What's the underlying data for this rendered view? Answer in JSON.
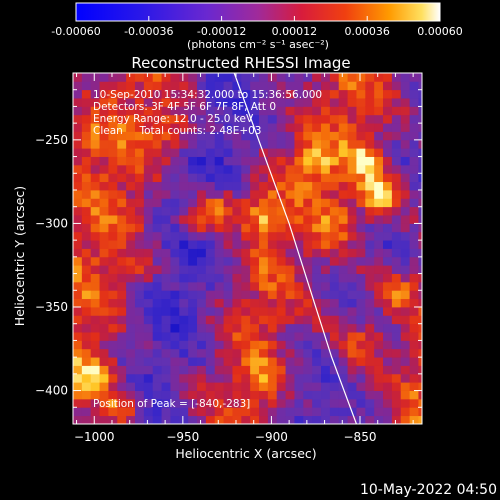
{
  "colorbar": {
    "ticks": [
      "-0.00060",
      "-0.00036",
      "-0.00012",
      "0.00012",
      "0.00036",
      "0.00060"
    ],
    "unit_label": "(photons cm⁻² s⁻¹ asec⁻²)",
    "range": [
      -0.0006,
      0.0006
    ]
  },
  "chart_data": {
    "type": "heatmap",
    "title": "Reconstructed RHESSI Image",
    "xlabel": "Heliocentric X (arcsec)",
    "ylabel": "Heliocentric Y (arcsec)",
    "xlim": [
      -1012,
      -815
    ],
    "ylim": [
      -420,
      -210
    ],
    "x_ticks": [
      -1000,
      -950,
      -900,
      -850
    ],
    "y_ticks": [
      -250,
      -300,
      -350,
      -400
    ],
    "annotations": [
      "10-Sep-2010 15:34:32.000 to 15:36:56.000",
      "Detectors: 3F 4F 5F 6F 7F 8F, Att 0",
      "Energy Range: 12.0 - 25.0 keV",
      "Clean     Total counts: 2.48E+03"
    ],
    "peak_label": "Position of Peak = [-840,-283]",
    "peak": [
      -840,
      -283
    ],
    "limb_curve": [
      [
        -921,
        -210
      ],
      [
        -890,
        -300
      ],
      [
        -866,
        -380
      ],
      [
        -852,
        -420
      ]
    ],
    "grid": false
  },
  "footer": {
    "timestamp": "10-May-2022 04:50"
  },
  "colors": {
    "background": "#000000",
    "foreground": "#ffffff"
  }
}
